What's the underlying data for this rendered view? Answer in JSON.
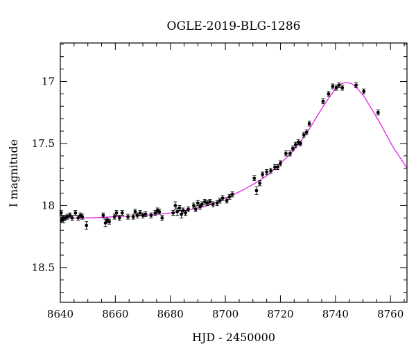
{
  "chart_data": {
    "type": "scatter",
    "title": "OGLE-2019-BLG-1286",
    "xlabel": "HJD - 2450000",
    "ylabel": "I magnitude",
    "xlim": [
      8640,
      8766
    ],
    "ylim": [
      18.78,
      16.69
    ],
    "y_inverted": true,
    "x_major_ticks": [
      8640,
      8660,
      8680,
      8700,
      8720,
      8740,
      8760
    ],
    "x_minor_step": 5,
    "y_major_ticks": [
      17,
      17.5,
      18,
      18.5
    ],
    "y_tick_labels": [
      "17",
      "17.5",
      "18",
      "18.5"
    ],
    "y_minor_step": 0.1,
    "grid": false,
    "legend": "none",
    "colors": {
      "model": "#e61fe6",
      "points": "#000000"
    },
    "series": [
      {
        "kind": "model-curve",
        "x": [
          8640,
          8650,
          8660,
          8670,
          8680,
          8685,
          8690,
          8695,
          8700,
          8705,
          8710,
          8715,
          8720,
          8725,
          8730,
          8735,
          8740,
          8742,
          8744,
          8746,
          8748,
          8750,
          8752,
          8755,
          8758,
          8761,
          8764,
          8766
        ],
        "y": [
          18.1,
          18.1,
          18.09,
          18.08,
          18.06,
          18.04,
          18.02,
          17.99,
          17.94,
          17.89,
          17.83,
          17.76,
          17.66,
          17.55,
          17.4,
          17.22,
          17.06,
          17.02,
          17.01,
          17.02,
          17.06,
          17.11,
          17.18,
          17.29,
          17.41,
          17.53,
          17.63,
          17.7
        ]
      },
      {
        "kind": "data-points",
        "points": [
          [
            8640.3,
            18.06,
            0.02
          ],
          [
            8640.5,
            18.12,
            0.02
          ],
          [
            8640.8,
            18.1,
            0.02
          ],
          [
            8641.2,
            18.11,
            0.03
          ],
          [
            8641.8,
            18.1,
            0.02
          ],
          [
            8642.5,
            18.09,
            0.02
          ],
          [
            8643.5,
            18.08,
            0.02
          ],
          [
            8644.3,
            18.1,
            0.02
          ],
          [
            8645.5,
            18.06,
            0.02
          ],
          [
            8646.5,
            18.1,
            0.02
          ],
          [
            8647.3,
            18.08,
            0.02
          ],
          [
            8648.0,
            18.09,
            0.02
          ],
          [
            8649.5,
            18.16,
            0.03
          ],
          [
            8655.6,
            18.08,
            0.02
          ],
          [
            8656.4,
            18.14,
            0.03
          ],
          [
            8657.0,
            18.12,
            0.02
          ],
          [
            8657.8,
            18.13,
            0.02
          ],
          [
            8659.7,
            18.09,
            0.02
          ],
          [
            8660.4,
            18.06,
            0.02
          ],
          [
            8661.5,
            18.1,
            0.02
          ],
          [
            8662.5,
            18.06,
            0.02
          ],
          [
            8664.6,
            18.09,
            0.02
          ],
          [
            8666.5,
            18.09,
            0.02
          ],
          [
            8667.2,
            18.05,
            0.02
          ],
          [
            8668.0,
            18.08,
            0.02
          ],
          [
            8669.0,
            18.06,
            0.02
          ],
          [
            8670.0,
            18.08,
            0.02
          ],
          [
            8671.0,
            18.07,
            0.02
          ],
          [
            8673.0,
            18.08,
            0.02
          ],
          [
            8674.5,
            18.06,
            0.02
          ],
          [
            8675.3,
            18.04,
            0.02
          ],
          [
            8676.0,
            18.05,
            0.02
          ],
          [
            8677.0,
            18.1,
            0.02
          ],
          [
            8681.0,
            18.06,
            0.02
          ],
          [
            8681.8,
            18.0,
            0.03
          ],
          [
            8682.5,
            18.05,
            0.03
          ],
          [
            8683.3,
            18.02,
            0.02
          ],
          [
            8684.0,
            18.07,
            0.03
          ],
          [
            8684.6,
            18.04,
            0.02
          ],
          [
            8685.5,
            18.06,
            0.02
          ],
          [
            8686.5,
            18.03,
            0.02
          ],
          [
            8688.5,
            18.0,
            0.02
          ],
          [
            8689.2,
            18.03,
            0.02
          ],
          [
            8690.0,
            17.98,
            0.02
          ],
          [
            8690.8,
            18.01,
            0.02
          ],
          [
            8691.5,
            17.99,
            0.02
          ],
          [
            8692.5,
            17.97,
            0.02
          ],
          [
            8693.4,
            17.98,
            0.02
          ],
          [
            8694.4,
            17.97,
            0.02
          ],
          [
            8695.5,
            17.99,
            0.02
          ],
          [
            8697.0,
            17.98,
            0.02
          ],
          [
            8698.0,
            17.96,
            0.02
          ],
          [
            8699.0,
            17.94,
            0.02
          ],
          [
            8700.5,
            17.96,
            0.02
          ],
          [
            8701.5,
            17.93,
            0.02
          ],
          [
            8702.5,
            17.91,
            0.02
          ],
          [
            8710.5,
            17.78,
            0.02
          ],
          [
            8711.3,
            17.88,
            0.03
          ],
          [
            8712.5,
            17.82,
            0.02
          ],
          [
            8713.5,
            17.75,
            0.02
          ],
          [
            8715.0,
            17.73,
            0.02
          ],
          [
            8716.5,
            17.72,
            0.02
          ],
          [
            8718.0,
            17.69,
            0.02
          ],
          [
            8719.0,
            17.69,
            0.02
          ],
          [
            8720.0,
            17.66,
            0.02
          ],
          [
            8722.0,
            17.58,
            0.02
          ],
          [
            8723.5,
            17.58,
            0.02
          ],
          [
            8724.5,
            17.54,
            0.02
          ],
          [
            8725.5,
            17.51,
            0.02
          ],
          [
            8726.5,
            17.49,
            0.02
          ],
          [
            8727.3,
            17.5,
            0.02
          ],
          [
            8728.5,
            17.43,
            0.02
          ],
          [
            8729.5,
            17.41,
            0.02
          ],
          [
            8730.5,
            17.34,
            0.02
          ],
          [
            8735.5,
            17.16,
            0.02
          ],
          [
            8737.5,
            17.1,
            0.02
          ],
          [
            8739.0,
            17.04,
            0.02
          ],
          [
            8740.3,
            17.05,
            0.02
          ],
          [
            8741.3,
            17.03,
            0.02
          ],
          [
            8742.5,
            17.05,
            0.02
          ],
          [
            8747.5,
            17.03,
            0.02
          ],
          [
            8750.3,
            17.08,
            0.02
          ],
          [
            8755.5,
            17.25,
            0.02
          ]
        ]
      }
    ]
  }
}
